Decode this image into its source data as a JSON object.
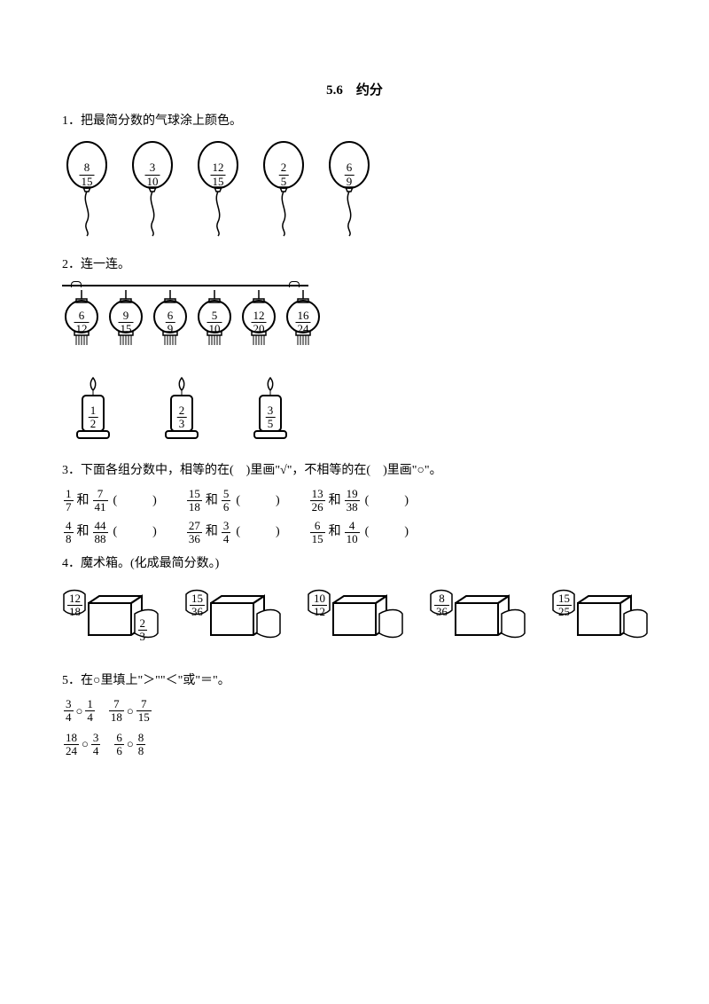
{
  "page": {
    "title": "5.6　约分",
    "text_color": "#000000",
    "background_color": "#ffffff"
  },
  "q1": {
    "label": "1．把最简分数的气球涂上颜色。",
    "balloons": [
      {
        "num": "8",
        "den": "15"
      },
      {
        "num": "3",
        "den": "10"
      },
      {
        "num": "12",
        "den": "15"
      },
      {
        "num": "2",
        "den": "5"
      },
      {
        "num": "6",
        "den": "9"
      }
    ],
    "stroke_color": "#000000",
    "stroke_width": 2
  },
  "q2": {
    "label": "2．连一连。",
    "lanterns": [
      {
        "num": "6",
        "den": "12"
      },
      {
        "num": "9",
        "den": "15"
      },
      {
        "num": "6",
        "den": "9"
      },
      {
        "num": "5",
        "den": "10"
      },
      {
        "num": "12",
        "den": "20"
      },
      {
        "num": "16",
        "den": "24"
      }
    ],
    "candles": [
      {
        "num": "1",
        "den": "2"
      },
      {
        "num": "2",
        "den": "3"
      },
      {
        "num": "3",
        "den": "5"
      }
    ],
    "stroke_color": "#000000"
  },
  "q3": {
    "label": "3．下面各组分数中，相等的在(　)里画\"√\"，不相等的在(　)里画\"○\"。",
    "row1": [
      {
        "a_num": "1",
        "a_den": "7",
        "b_num": "7",
        "b_den": "41"
      },
      {
        "a_num": "15",
        "a_den": "18",
        "b_num": "5",
        "b_den": "6"
      },
      {
        "a_num": "13",
        "a_den": "26",
        "b_num": "19",
        "b_den": "38"
      }
    ],
    "row2": [
      {
        "a_num": "4",
        "a_den": "8",
        "b_num": "44",
        "b_den": "88"
      },
      {
        "a_num": "27",
        "a_den": "36",
        "b_num": "3",
        "b_den": "4"
      },
      {
        "a_num": "6",
        "a_den": "15",
        "b_num": "4",
        "b_den": "10"
      }
    ],
    "and": "和",
    "paren": "(　　)"
  },
  "q4": {
    "label": "4．魔术箱。(化成最简分数。)",
    "boxes": [
      {
        "in_num": "12",
        "in_den": "18",
        "out_num": "2",
        "out_den": "3"
      },
      {
        "in_num": "15",
        "in_den": "36",
        "out_num": "",
        "out_den": ""
      },
      {
        "in_num": "10",
        "in_den": "12",
        "out_num": "",
        "out_den": ""
      },
      {
        "in_num": "8",
        "in_den": "36",
        "out_num": "",
        "out_den": ""
      },
      {
        "in_num": "15",
        "in_den": "25",
        "out_num": "",
        "out_den": ""
      }
    ],
    "stroke_color": "#000000"
  },
  "q5": {
    "label": "5．在○里填上\"＞\"\"＜\"或\"＝\"。",
    "row1": [
      {
        "a_num": "3",
        "a_den": "4",
        "b_num": "1",
        "b_den": "4"
      },
      {
        "a_num": "7",
        "a_den": "18",
        "b_num": "7",
        "b_den": "15"
      }
    ],
    "row2": [
      {
        "a_num": "18",
        "a_den": "24",
        "b_num": "3",
        "b_den": "4"
      },
      {
        "a_num": "6",
        "a_den": "6",
        "b_num": "8",
        "b_den": "8"
      }
    ],
    "circle": "○"
  }
}
